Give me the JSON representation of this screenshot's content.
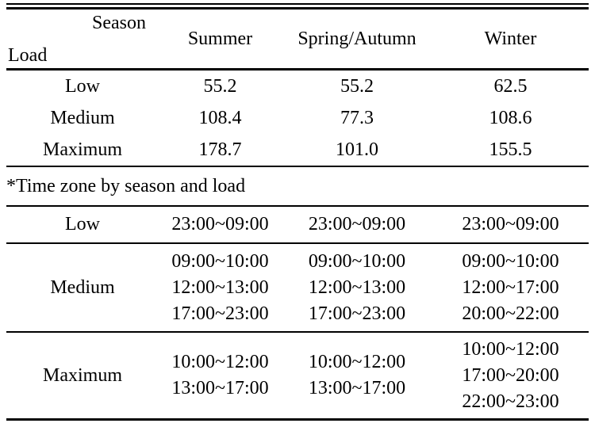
{
  "table": {
    "header": {
      "corner_top": "Season",
      "corner_bottom": "Load",
      "columns": [
        "Summer",
        "Spring/Autumn",
        "Winter"
      ]
    },
    "load_rows": [
      {
        "load": "Low",
        "values": [
          "55.2",
          "55.2",
          "62.5"
        ]
      },
      {
        "load": "Medium",
        "values": [
          "108.4",
          "77.3",
          "108.6"
        ]
      },
      {
        "load": "Maximum",
        "values": [
          "178.7",
          "101.0",
          "155.5"
        ]
      }
    ],
    "note": "*Time zone by season and load",
    "timezone_rows": [
      {
        "load": "Low",
        "values": [
          [
            "23:00~09:00"
          ],
          [
            "23:00~09:00"
          ],
          [
            "23:00~09:00"
          ]
        ]
      },
      {
        "load": "Medium",
        "values": [
          [
            "09:00~10:00",
            "12:00~13:00",
            "17:00~23:00"
          ],
          [
            "09:00~10:00",
            "12:00~13:00",
            "17:00~23:00"
          ],
          [
            "09:00~10:00",
            "12:00~17:00",
            "20:00~22:00"
          ]
        ]
      },
      {
        "load": "Maximum",
        "values": [
          [
            "10:00~12:00",
            "13:00~17:00"
          ],
          [
            "10:00~12:00",
            "13:00~17:00"
          ],
          [
            "10:00~12:00",
            "17:00~20:00",
            "22:00~23:00"
          ]
        ]
      }
    ]
  },
  "colors": {
    "text": "#000000",
    "background": "#ffffff",
    "rule": "#000000"
  }
}
